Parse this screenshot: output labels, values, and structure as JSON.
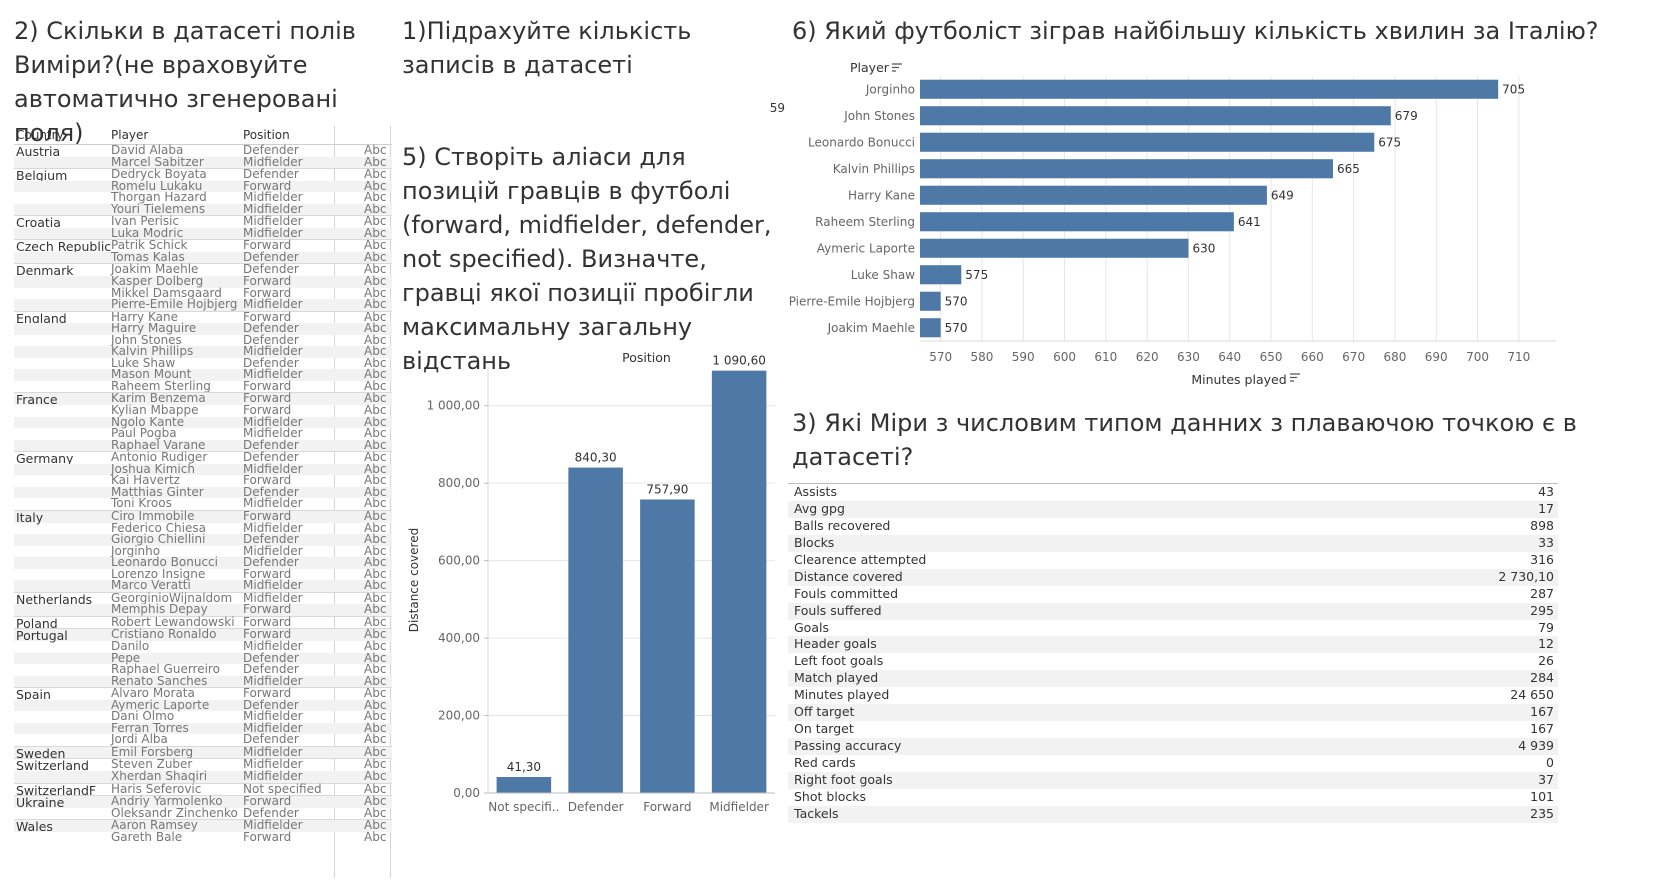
{
  "questions": {
    "q2": "2) Скільки в датасеті полів Виміри?(не враховуйте автоматично згенеровані поля)",
    "q1": "1)Підрахуйте кількість записів в датасеті",
    "q5": "5) Створіть аліаси для позицій гравців в футболі (forward, midfielder, defender, not specified). Визначте, гравці якої позиції пробігли максимальну загальну відстань",
    "q6": "6) Який футболіст зіграв найбільшу кількість хвилин за Італію?",
    "q3": "3) Які Міри з числовим типом данних з плаваючою точкою є в датасеті?"
  },
  "record_count": "59",
  "dim_table": {
    "headers": {
      "country": "Country",
      "player": "Player",
      "position": "Position"
    },
    "rows": [
      {
        "country": "Austria",
        "player": "David Alaba",
        "position": "Defender",
        "abc": "Abc"
      },
      {
        "country": "",
        "player": "Marcel Sabitzer",
        "position": "Midfielder",
        "abc": "Abc"
      },
      {
        "country": "Belgium",
        "player": "Dedryck Boyata",
        "position": "Defender",
        "abc": "Abc"
      },
      {
        "country": "",
        "player": "Romelu Lukaku",
        "position": "Forward",
        "abc": "Abc"
      },
      {
        "country": "",
        "player": "Thorgan Hazard",
        "position": "Midfielder",
        "abc": "Abc"
      },
      {
        "country": "",
        "player": "Youri Tielemens",
        "position": "Midfielder",
        "abc": "Abc"
      },
      {
        "country": "Croatia",
        "player": "Ivan Perisic",
        "position": "Midfielder",
        "abc": "Abc"
      },
      {
        "country": "",
        "player": "Luka Modric",
        "position": "Midfielder",
        "abc": "Abc"
      },
      {
        "country": "Czech Republic",
        "player": "Patrik Schick",
        "position": "Forward",
        "abc": "Abc"
      },
      {
        "country": "",
        "player": "Tomas Kalas",
        "position": "Defender",
        "abc": "Abc"
      },
      {
        "country": "Denmark",
        "player": "Joakim Maehle",
        "position": "Defender",
        "abc": "Abc"
      },
      {
        "country": "",
        "player": "Kasper Dolberg",
        "position": "Forward",
        "abc": "Abc"
      },
      {
        "country": "",
        "player": "Mikkel Damsgaard",
        "position": "Forward",
        "abc": "Abc"
      },
      {
        "country": "",
        "player": "Pierre-Emile Hojbjerg",
        "position": "Midfielder",
        "abc": "Abc"
      },
      {
        "country": "England",
        "player": "Harry Kane",
        "position": "Forward",
        "abc": "Abc"
      },
      {
        "country": "",
        "player": "Harry Maguire",
        "position": "Defender",
        "abc": "Abc"
      },
      {
        "country": "",
        "player": "John Stones",
        "position": "Defender",
        "abc": "Abc"
      },
      {
        "country": "",
        "player": "Kalvin Phillips",
        "position": "Midfielder",
        "abc": "Abc"
      },
      {
        "country": "",
        "player": "Luke Shaw",
        "position": "Defender",
        "abc": "Abc"
      },
      {
        "country": "",
        "player": "Mason Mount",
        "position": "Midfielder",
        "abc": "Abc"
      },
      {
        "country": "",
        "player": "Raheem Sterling",
        "position": "Forward",
        "abc": "Abc"
      },
      {
        "country": "France",
        "player": "Karim Benzema",
        "position": "Forward",
        "abc": "Abc"
      },
      {
        "country": "",
        "player": "Kylian Mbappe",
        "position": "Forward",
        "abc": "Abc"
      },
      {
        "country": "",
        "player": "Ngolo Kante",
        "position": "Midfielder",
        "abc": "Abc"
      },
      {
        "country": "",
        "player": "Paul Pogba",
        "position": "Midfielder",
        "abc": "Abc"
      },
      {
        "country": "",
        "player": "Raphael Varane",
        "position": "Defender",
        "abc": "Abc"
      },
      {
        "country": "Germany",
        "player": "Antonio Rudiger",
        "position": "Defender",
        "abc": "Abc"
      },
      {
        "country": "",
        "player": "Joshua Kimich",
        "position": "Midfielder",
        "abc": "Abc"
      },
      {
        "country": "",
        "player": "Kai Havertz",
        "position": "Forward",
        "abc": "Abc"
      },
      {
        "country": "",
        "player": "Matthias Ginter",
        "position": "Defender",
        "abc": "Abc"
      },
      {
        "country": "",
        "player": "Toni Kroos",
        "position": "Midfielder",
        "abc": "Abc"
      },
      {
        "country": "Italy",
        "player": "Ciro Immobile",
        "position": "Forward",
        "abc": "Abc"
      },
      {
        "country": "",
        "player": "Federico Chiesa",
        "position": "Midfielder",
        "abc": "Abc"
      },
      {
        "country": "",
        "player": "Giorgio Chiellini",
        "position": "Defender",
        "abc": "Abc"
      },
      {
        "country": "",
        "player": "Jorginho",
        "position": "Midfielder",
        "abc": "Abc"
      },
      {
        "country": "",
        "player": "Leonardo Bonucci",
        "position": "Defender",
        "abc": "Abc"
      },
      {
        "country": "",
        "player": "Lorenzo Insigne",
        "position": "Forward",
        "abc": "Abc"
      },
      {
        "country": "",
        "player": "Marco Veratti",
        "position": "Midfielder",
        "abc": "Abc"
      },
      {
        "country": "Netherlands",
        "player": "GeorginioWijnaldom",
        "position": "Midfielder",
        "abc": "Abc"
      },
      {
        "country": "",
        "player": "Memphis Depay",
        "position": "Forward",
        "abc": "Abc"
      },
      {
        "country": "Poland",
        "player": "Robert Lewandowski",
        "position": "Forward",
        "abc": "Abc"
      },
      {
        "country": "Portugal",
        "player": "Cristiano Ronaldo",
        "position": "Forward",
        "abc": "Abc"
      },
      {
        "country": "",
        "player": "Danilo",
        "position": "Midfielder",
        "abc": "Abc"
      },
      {
        "country": "",
        "player": "Pepe",
        "position": "Defender",
        "abc": "Abc"
      },
      {
        "country": "",
        "player": "Raphael Guerreiro",
        "position": "Defender",
        "abc": "Abc"
      },
      {
        "country": "",
        "player": "Renato Sanches",
        "position": "Midfielder",
        "abc": "Abc"
      },
      {
        "country": "Spain",
        "player": "Alvaro Morata",
        "position": "Forward",
        "abc": "Abc"
      },
      {
        "country": "",
        "player": "Aymeric Laporte",
        "position": "Defender",
        "abc": "Abc"
      },
      {
        "country": "",
        "player": "Dani Olmo",
        "position": "Midfielder",
        "abc": "Abc"
      },
      {
        "country": "",
        "player": "Ferran Torres",
        "position": "Midfielder",
        "abc": "Abc"
      },
      {
        "country": "",
        "player": "Jordi Alba",
        "position": "Defender",
        "abc": "Abc"
      },
      {
        "country": "Sweden",
        "player": "Emil Forsberg",
        "position": "Midfielder",
        "abc": "Abc"
      },
      {
        "country": "Switzerland",
        "player": "Steven Zuber",
        "position": "Midfielder",
        "abc": "Abc"
      },
      {
        "country": "",
        "player": "Xherdan Shaqiri",
        "position": "Midfielder",
        "abc": "Abc"
      },
      {
        "country": "SwitzerlandF",
        "player": "Haris Seferovic",
        "position": "Not specified",
        "abc": "Abc"
      },
      {
        "country": "Ukraine",
        "player": "Andriy Yarmolenko",
        "position": "Forward",
        "abc": "Abc"
      },
      {
        "country": "",
        "player": "Oleksandr Zinchenko",
        "position": "Defender",
        "abc": "Abc"
      },
      {
        "country": "Wales",
        "player": "Aaron Ramsey",
        "position": "Midfielder",
        "abc": "Abc"
      },
      {
        "country": "",
        "player": "Gareth Bale",
        "position": "Forward",
        "abc": "Abc"
      }
    ]
  },
  "colors": {
    "bar": "#4e79a7",
    "grid": "#e6e6e6",
    "axis_text": "#666666"
  },
  "chart_data": [
    {
      "type": "bar",
      "orientation": "vertical",
      "title": "Position",
      "ylabel": "Distance covered",
      "xlabel": "",
      "categories": [
        "Not specifi..",
        "Defender",
        "Forward",
        "Midfielder"
      ],
      "values": [
        41.3,
        840.3,
        757.9,
        1090.6
      ],
      "value_labels": [
        "41,30",
        "840,30",
        "757,90",
        "1 090,60"
      ],
      "ylim": [
        0,
        1100
      ],
      "yticks": [
        0,
        200,
        400,
        600,
        800,
        1000
      ],
      "ytick_labels": [
        "0,00",
        "200,00",
        "400,00",
        "600,00",
        "800,00",
        "1 000,00"
      ],
      "grid": true
    },
    {
      "type": "bar",
      "orientation": "horizontal",
      "title": "Player",
      "xlabel": "Minutes played",
      "categories": [
        "Jorginho",
        "John Stones",
        "Leonardo Bonucci",
        "Kalvin Phillips",
        "Harry Kane",
        "Raheem Sterling",
        "Aymeric Laporte",
        "Luke Shaw",
        "Pierre-Emile Hojbjerg",
        "Joakim Maehle"
      ],
      "values": [
        705,
        679,
        675,
        665,
        649,
        641,
        630,
        575,
        570,
        570
      ],
      "xlim": [
        565,
        719
      ],
      "xticks": [
        570,
        580,
        590,
        600,
        610,
        620,
        630,
        640,
        650,
        660,
        670,
        680,
        690,
        700,
        710
      ],
      "grid": true
    }
  ],
  "measures": [
    {
      "name": "Assists",
      "value": "43"
    },
    {
      "name": "Avg gpg",
      "value": "17"
    },
    {
      "name": "Balls recovered",
      "value": "898"
    },
    {
      "name": "Blocks",
      "value": "33"
    },
    {
      "name": "Clearence attempted",
      "value": "316"
    },
    {
      "name": "Distance covered",
      "value": "2 730,10"
    },
    {
      "name": "Fouls committed",
      "value": "287"
    },
    {
      "name": "Fouls suffered",
      "value": "295"
    },
    {
      "name": "Goals",
      "value": "79"
    },
    {
      "name": "Header goals",
      "value": "12"
    },
    {
      "name": "Left foot goals",
      "value": "26"
    },
    {
      "name": "Match played",
      "value": "284"
    },
    {
      "name": "Minutes played",
      "value": "24 650"
    },
    {
      "name": "Off target",
      "value": "167"
    },
    {
      "name": "On target",
      "value": "167"
    },
    {
      "name": "Passing accuracy",
      "value": "4 939"
    },
    {
      "name": "Red cards",
      "value": "0"
    },
    {
      "name": "Right foot goals",
      "value": "37"
    },
    {
      "name": "Shot blocks",
      "value": "101"
    },
    {
      "name": "Tackels",
      "value": "235"
    }
  ]
}
